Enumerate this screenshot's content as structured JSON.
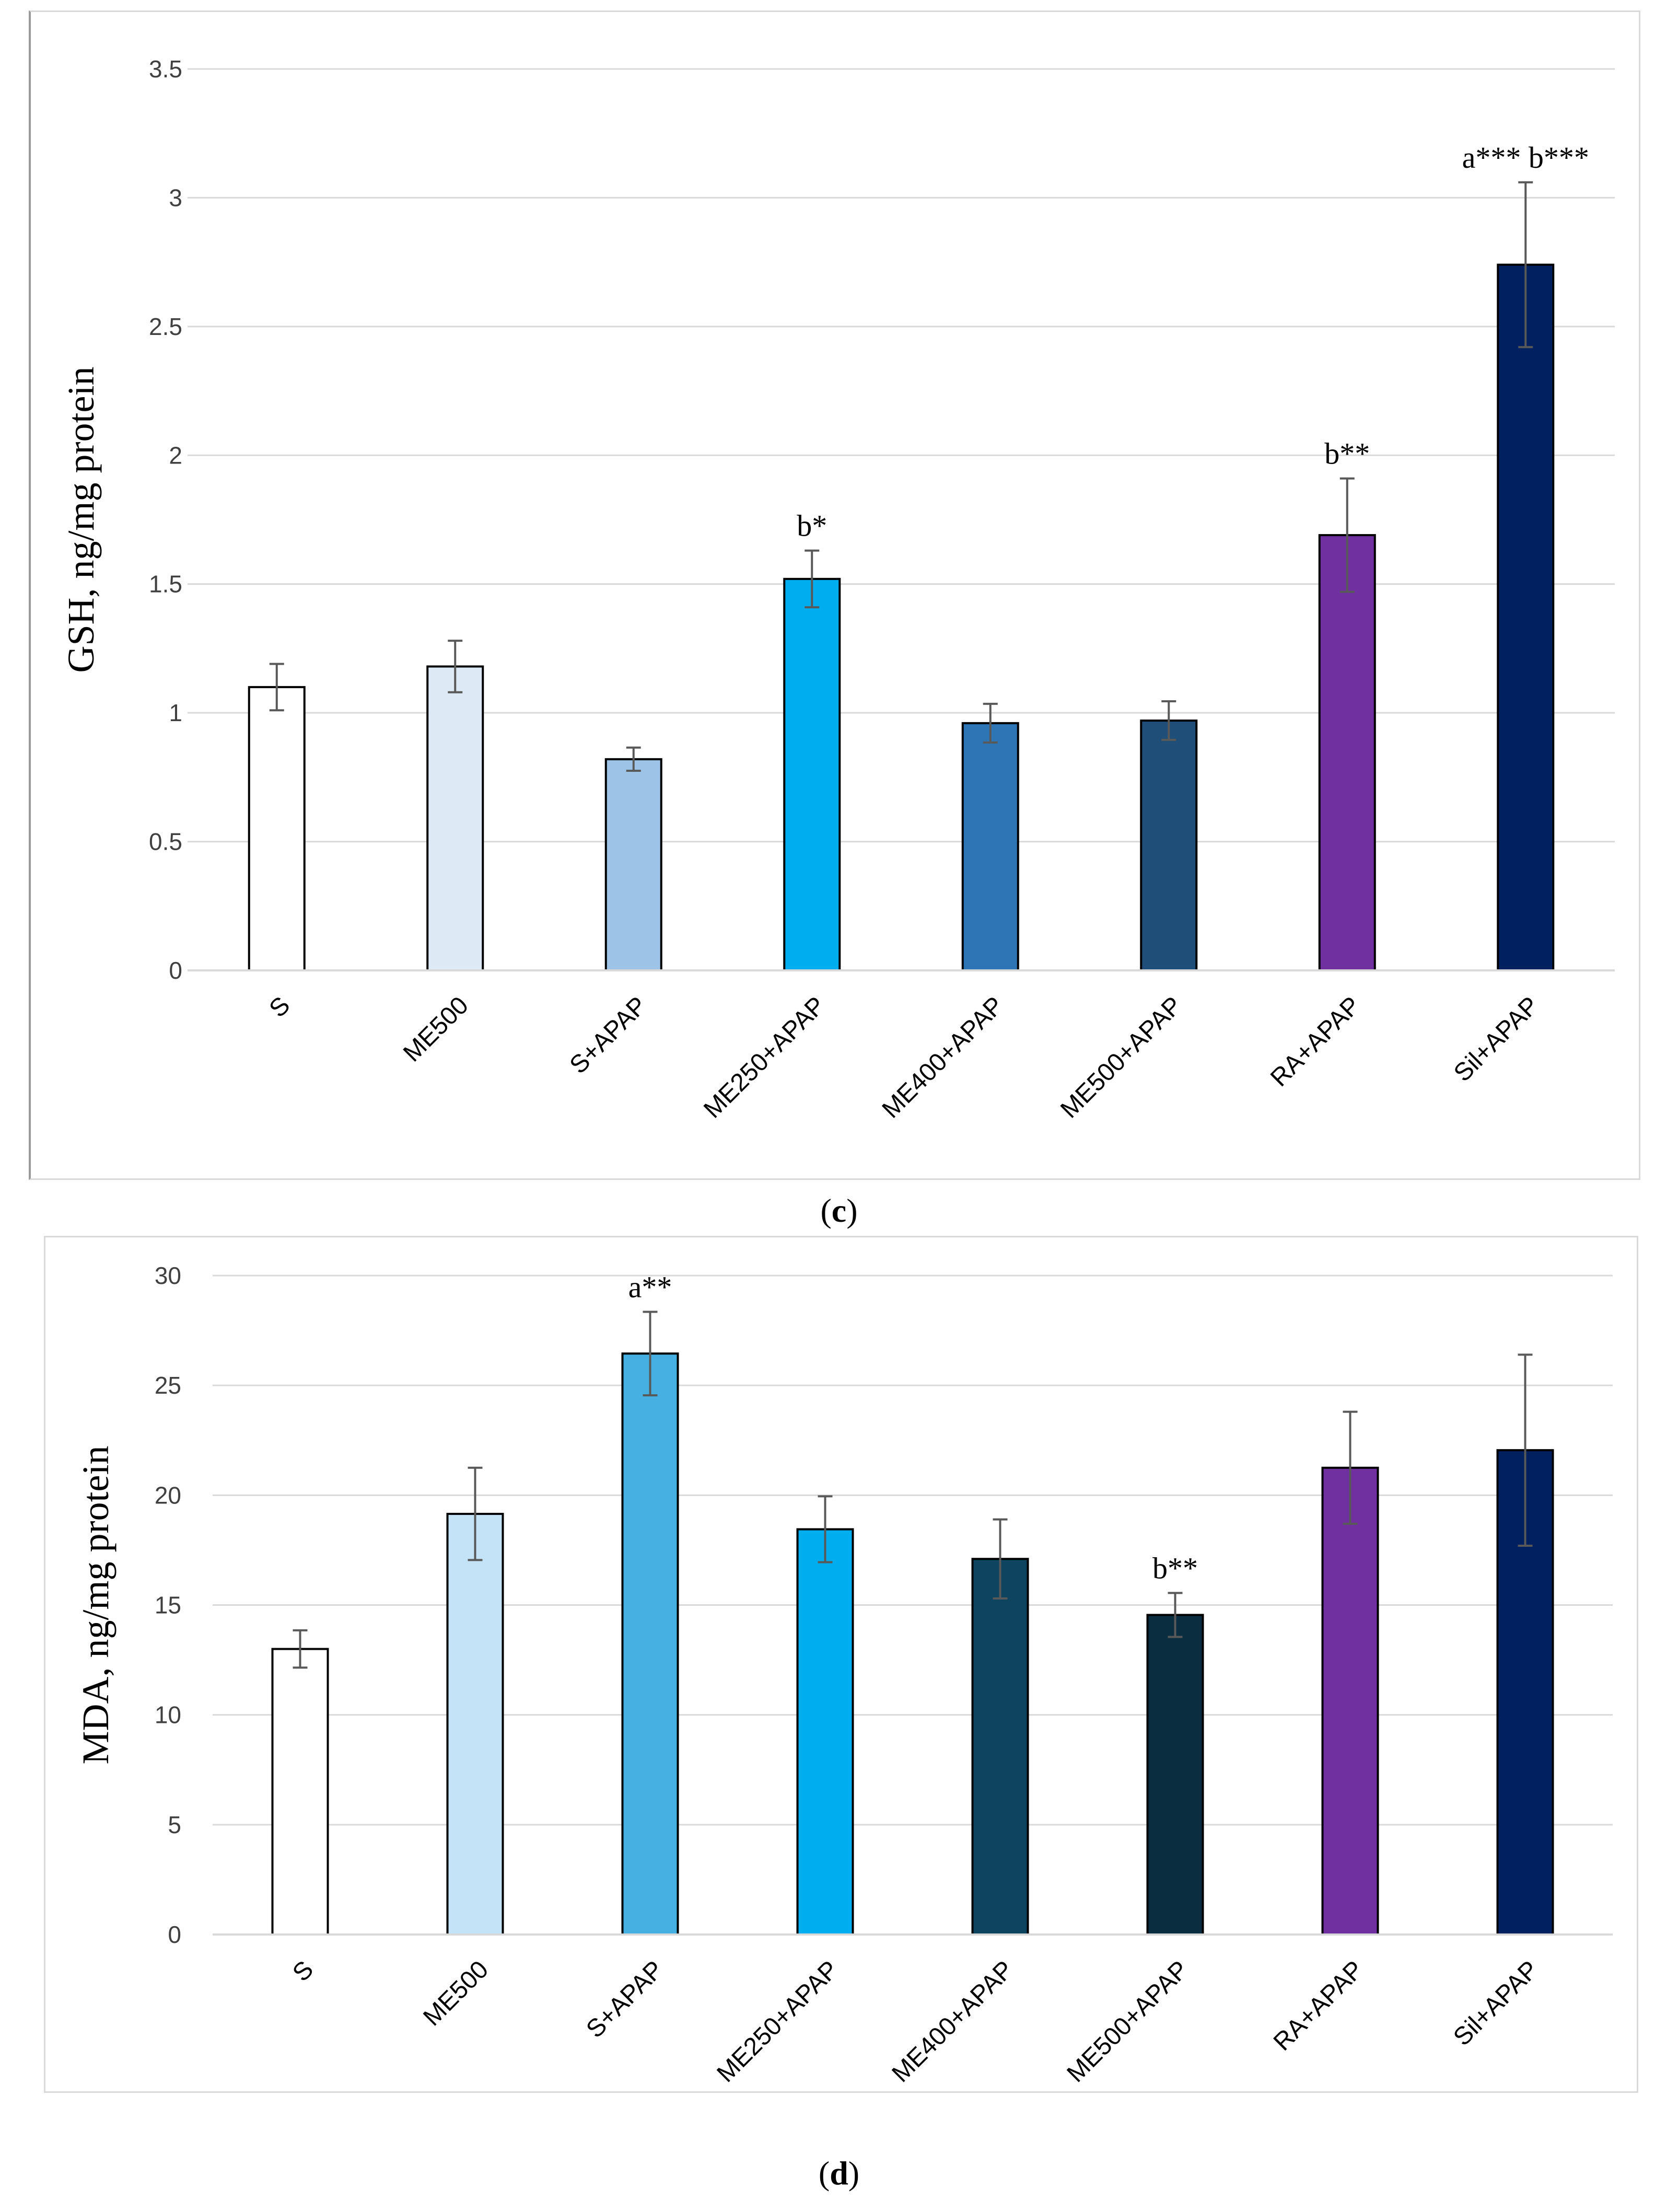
{
  "captions": {
    "c": {
      "open": "(",
      "letter": "c",
      "close": ")"
    },
    "d": {
      "open": "(",
      "letter": "d",
      "close": ")"
    }
  },
  "chart_data": [
    {
      "type": "bar",
      "panel": "c",
      "ylabel": "GSH, ng/mg protein",
      "xlabel": "",
      "ylim": [
        0,
        3.5
      ],
      "yticks": [
        0,
        0.5,
        1,
        1.5,
        2,
        2.5,
        3,
        3.5
      ],
      "ytick_labels": [
        "0",
        "0.5",
        "1",
        "1.5",
        "2",
        "2.5",
        "3",
        "3.5"
      ],
      "grid": true,
      "categories": [
        "S",
        "ME500",
        "S+APAP",
        "ME250+APAP",
        "ME400+APAP",
        "ME500+APAP",
        "RA+APAP",
        "Sil+APAP"
      ],
      "values": [
        1.1,
        1.18,
        0.82,
        1.52,
        0.96,
        0.97,
        1.69,
        2.74
      ],
      "errors": [
        0.09,
        0.1,
        0.045,
        0.11,
        0.075,
        0.075,
        0.22,
        0.32
      ],
      "colors": [
        "#ffffff",
        "#ddeaf6",
        "#9dc3e6",
        "#00aeef",
        "#2e75b6",
        "#1f4e79",
        "#7030a0",
        "#002060"
      ],
      "annotations": [
        "",
        "",
        "",
        "b*",
        "",
        "",
        "b**",
        "a*** b***"
      ]
    },
    {
      "type": "bar",
      "panel": "d",
      "ylabel": "MDA, ng/mg protein",
      "xlabel": "",
      "ylim": [
        0,
        30
      ],
      "yticks": [
        0,
        5,
        10,
        15,
        20,
        25,
        30
      ],
      "ytick_labels": [
        "0",
        "5",
        "10",
        "15",
        "20",
        "25",
        "30"
      ],
      "grid": true,
      "categories": [
        "S",
        "ME500",
        "S+APAP",
        "ME250+APAP",
        "ME400+APAP",
        "ME500+APAP",
        "RA+APAP",
        "Sil+APAP"
      ],
      "values": [
        13.0,
        19.15,
        26.45,
        18.45,
        17.1,
        14.55,
        21.25,
        22.05
      ],
      "errors": [
        0.85,
        2.1,
        1.9,
        1.5,
        1.8,
        1.0,
        2.55,
        4.35
      ],
      "colors": [
        "#ffffff",
        "#c5e3f6",
        "#45b0e1",
        "#00aeef",
        "#0e445f",
        "#0a2d40",
        "#7030a0",
        "#002060"
      ],
      "annotations": [
        "",
        "",
        "a**",
        "",
        "",
        "b**",
        "",
        ""
      ]
    }
  ]
}
